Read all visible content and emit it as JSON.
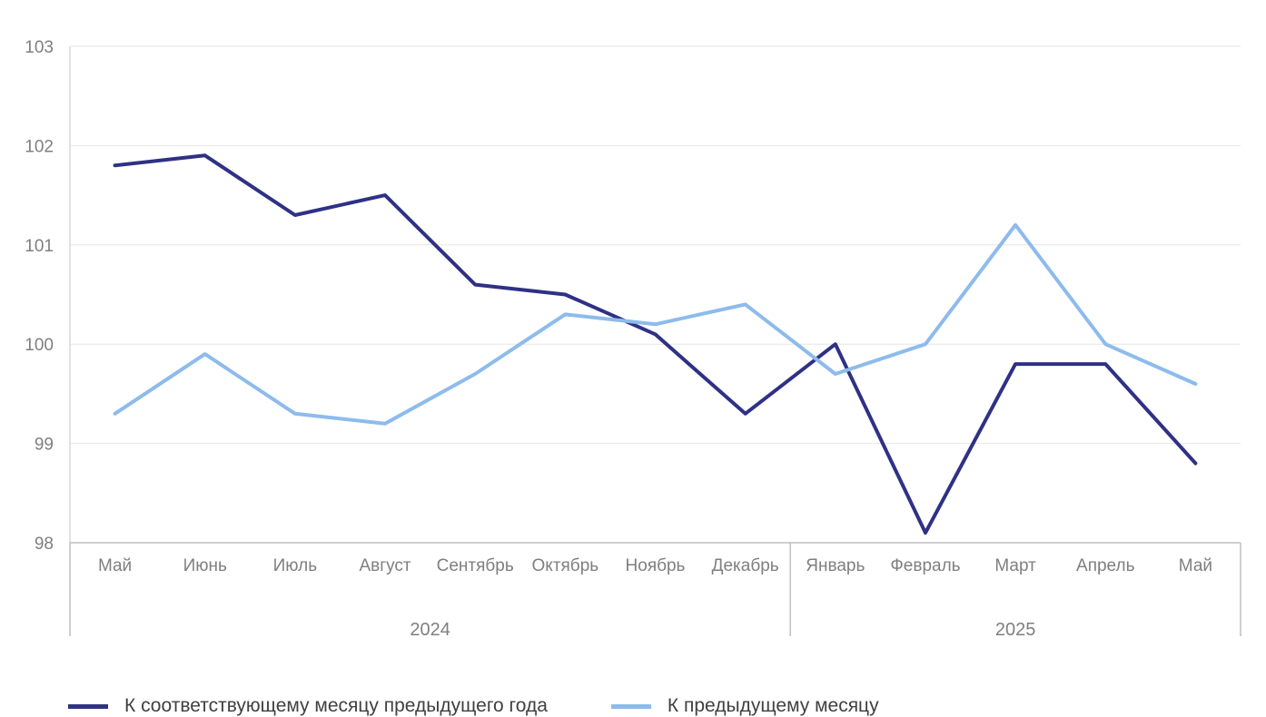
{
  "chart_data": {
    "type": "line",
    "title": "",
    "xlabel": "",
    "ylabel": "",
    "categories": [
      "Май",
      "Июнь",
      "Июль",
      "Август",
      "Сентябрь",
      "Октябрь",
      "Ноябрь",
      "Декабрь",
      "Январь",
      "Февраль",
      "Март",
      "Апрель",
      "Май"
    ],
    "category_groups": [
      {
        "label": "2024",
        "count": 8
      },
      {
        "label": "2025",
        "count": 5
      }
    ],
    "ylim": [
      98,
      103
    ],
    "yticks": [
      98,
      99,
      100,
      101,
      102,
      103
    ],
    "grid": true,
    "legend_position": "bottom",
    "series": [
      {
        "name": "К соответствующему месяцу предыдущего года",
        "color": "#2e3185",
        "values": [
          101.8,
          101.9,
          101.3,
          101.5,
          100.6,
          100.5,
          100.1,
          99.3,
          100.0,
          98.1,
          99.8,
          99.8,
          98.8
        ]
      },
      {
        "name": "К предыдущему месяцу",
        "color": "#8dbbec",
        "values": [
          99.3,
          99.9,
          99.3,
          99.2,
          99.7,
          100.3,
          100.2,
          100.4,
          99.7,
          100.0,
          101.2,
          100.0,
          99.6
        ]
      }
    ]
  }
}
